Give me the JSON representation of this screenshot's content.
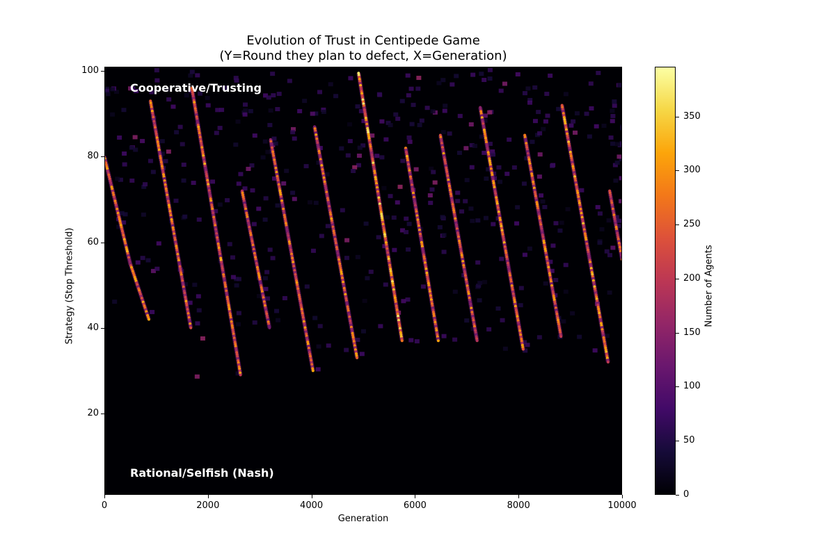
{
  "chart_data": {
    "type": "heatmap",
    "title": "Evolution of Trust in Centipede Game",
    "subtitle": "(Y=Round they plan to defect, X=Generation)",
    "xlabel": "Generation",
    "ylabel": "Strategy (Stop Threshold)",
    "xlim": [
      0,
      10000
    ],
    "ylim": [
      1,
      101
    ],
    "xticks": [
      "0",
      "2000",
      "4000",
      "6000",
      "8000",
      "10000"
    ],
    "yticks": [
      "20",
      "40",
      "60",
      "80",
      "100"
    ],
    "colormap": "inferno",
    "colorbar": {
      "label": "Number of Agents",
      "range": [
        0,
        396
      ],
      "ticks": [
        "0",
        "50",
        "100",
        "150",
        "200",
        "250",
        "300",
        "350"
      ]
    },
    "annotations": [
      "Cooperative/Trusting",
      "Rational/Selfish (Nash)"
    ],
    "background_value": 0,
    "streaks": [
      {
        "points": [
          [
            0,
            80
          ],
          [
            500,
            55
          ],
          [
            860,
            42
          ]
        ],
        "peak": 330
      },
      {
        "points": [
          [
            890,
            93
          ],
          [
            1670,
            40
          ]
        ],
        "peak": 320
      },
      {
        "points": [
          [
            1690,
            96
          ],
          [
            2630,
            29
          ]
        ],
        "peak": 330
      },
      {
        "points": [
          [
            2660,
            72
          ],
          [
            3190,
            40
          ]
        ],
        "peak": 300
      },
      {
        "points": [
          [
            3210,
            84
          ],
          [
            4030,
            30
          ]
        ],
        "peak": 320
      },
      {
        "points": [
          [
            4060,
            87
          ],
          [
            4880,
            33
          ]
        ],
        "peak": 320
      },
      {
        "points": [
          [
            4910,
            99.5
          ],
          [
            5750,
            37
          ]
        ],
        "peak": 380
      },
      {
        "points": [
          [
            5820,
            82
          ],
          [
            6450,
            37
          ]
        ],
        "peak": 330
      },
      {
        "points": [
          [
            6490,
            85
          ],
          [
            7200,
            37
          ]
        ],
        "peak": 320
      },
      {
        "points": [
          [
            7260,
            91.5
          ],
          [
            8090,
            35
          ]
        ],
        "peak": 330
      },
      {
        "points": [
          [
            8120,
            85
          ],
          [
            8820,
            38
          ]
        ],
        "peak": 320
      },
      {
        "points": [
          [
            8840,
            92
          ],
          [
            9730,
            32
          ]
        ],
        "peak": 340
      },
      {
        "points": [
          [
            9760,
            72
          ],
          [
            10000,
            56
          ]
        ],
        "peak": 300
      }
    ]
  }
}
